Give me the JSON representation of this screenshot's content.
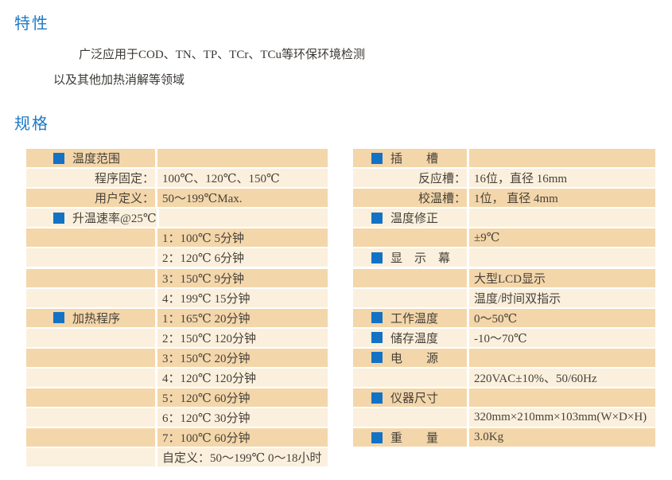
{
  "features": {
    "title": "特性",
    "line1": "广泛应用于COD、TN、TP、TCr、TCu等环保环境检测",
    "line2": "以及其他加热消解等领域"
  },
  "specs": {
    "title": "规格"
  },
  "colors": {
    "heading_blue": "#1d79c6",
    "bullet_blue": "#1472c5",
    "row_tan": "#f3d6aa",
    "row_cream": "#fbf0dd",
    "text_dark": "#47423b"
  },
  "left_table": {
    "rows": [
      {
        "type": "header",
        "label": "温度范围",
        "value": ""
      },
      {
        "type": "sub",
        "label": "程序固定：",
        "value": "100℃、120℃、150℃"
      },
      {
        "type": "sub",
        "label": "用户定义：",
        "value": "50～199℃Max."
      },
      {
        "type": "header",
        "label": "升温速率@25℃",
        "value": ""
      },
      {
        "type": "plain",
        "label": "",
        "value": "1：100℃ 5分钟"
      },
      {
        "type": "plain",
        "label": "",
        "value": "2：120℃ 6分钟"
      },
      {
        "type": "plain",
        "label": "",
        "value": "3：150℃ 9分钟"
      },
      {
        "type": "plain",
        "label": "",
        "value": "4：199℃ 15分钟"
      },
      {
        "type": "header",
        "label": "加热程序",
        "value": "1：165℃ 20分钟"
      },
      {
        "type": "plain",
        "label": "",
        "value": "2：150℃ 120分钟"
      },
      {
        "type": "plain",
        "label": "",
        "value": "3：150℃ 20分钟"
      },
      {
        "type": "plain",
        "label": "",
        "value": "4：120℃ 120分钟"
      },
      {
        "type": "plain",
        "label": "",
        "value": "5：120℃ 60分钟"
      },
      {
        "type": "plain",
        "label": "",
        "value": "6：120℃ 30分钟"
      },
      {
        "type": "plain",
        "label": "",
        "value": "7：100℃ 60分钟"
      },
      {
        "type": "plain",
        "label": "",
        "value": "自定义：50～199℃ 0～18小时"
      }
    ]
  },
  "right_table": {
    "rows": [
      {
        "type": "header",
        "label": "插　　槽",
        "value": ""
      },
      {
        "type": "sub",
        "label": "反应槽：",
        "value": "16位，直径 16mm"
      },
      {
        "type": "sub",
        "label": "校温槽：",
        "value": "1位， 直径 4mm"
      },
      {
        "type": "header",
        "label": "温度修正",
        "value": ""
      },
      {
        "type": "plain",
        "label": "",
        "value": "±9℃"
      },
      {
        "type": "header",
        "label": "显　示　幕",
        "value": ""
      },
      {
        "type": "plain",
        "label": "",
        "value": "大型LCD显示"
      },
      {
        "type": "plain",
        "label": "",
        "value": "温度/时间双指示"
      },
      {
        "type": "header",
        "label": "工作温度",
        "value": "0～50℃"
      },
      {
        "type": "header",
        "label": "储存温度",
        "value": "-10～70℃"
      },
      {
        "type": "header",
        "label": "电　　源",
        "value": ""
      },
      {
        "type": "plain",
        "label": "",
        "value": "220VAC±10%、50/60Hz"
      },
      {
        "type": "header",
        "label": "仪器尺寸",
        "value": ""
      },
      {
        "type": "plain",
        "label": "",
        "value": "320mm×210mm×103mm(W×D×H)"
      },
      {
        "type": "header",
        "label": "重　　量",
        "value": "3.0Kg"
      }
    ]
  }
}
